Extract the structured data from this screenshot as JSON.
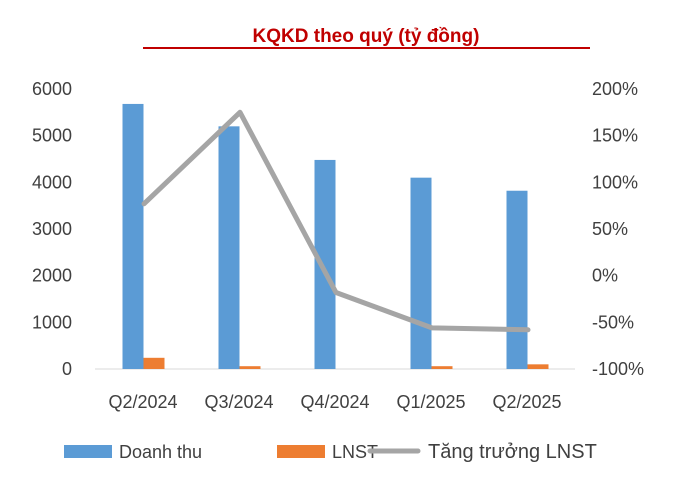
{
  "chart_data": {
    "type": "bar",
    "title": "KQKD theo quý (tỷ đồng)",
    "categories": [
      "Q2/2024",
      "Q3/2024",
      "Q4/2024",
      "Q1/2025",
      "Q2/2025"
    ],
    "series": [
      {
        "name": "Doanh thu",
        "type": "bar",
        "axis": "left",
        "color": "#5b9bd5",
        "values": [
          5680,
          5200,
          4480,
          4100,
          3820
        ]
      },
      {
        "name": "LNST",
        "type": "bar",
        "axis": "left",
        "color": "#ed7d31",
        "values": [
          240,
          60,
          0,
          60,
          100
        ]
      },
      {
        "name": "Tăng trưởng LNST",
        "type": "line",
        "axis": "right",
        "color": "#a5a5a5",
        "values": [
          77,
          175,
          -18,
          -56,
          -58
        ]
      }
    ],
    "y_left": {
      "ylim": [
        0,
        6000
      ],
      "ticks": [
        "0",
        "1000",
        "2000",
        "3000",
        "4000",
        "5000",
        "6000"
      ]
    },
    "y_right": {
      "ylim": [
        -100,
        200
      ],
      "ticks": [
        "-100%",
        "-50%",
        "0%",
        "50%",
        "100%",
        "150%",
        "200%"
      ]
    },
    "legend": {
      "position": "bottom"
    },
    "grid": false
  }
}
